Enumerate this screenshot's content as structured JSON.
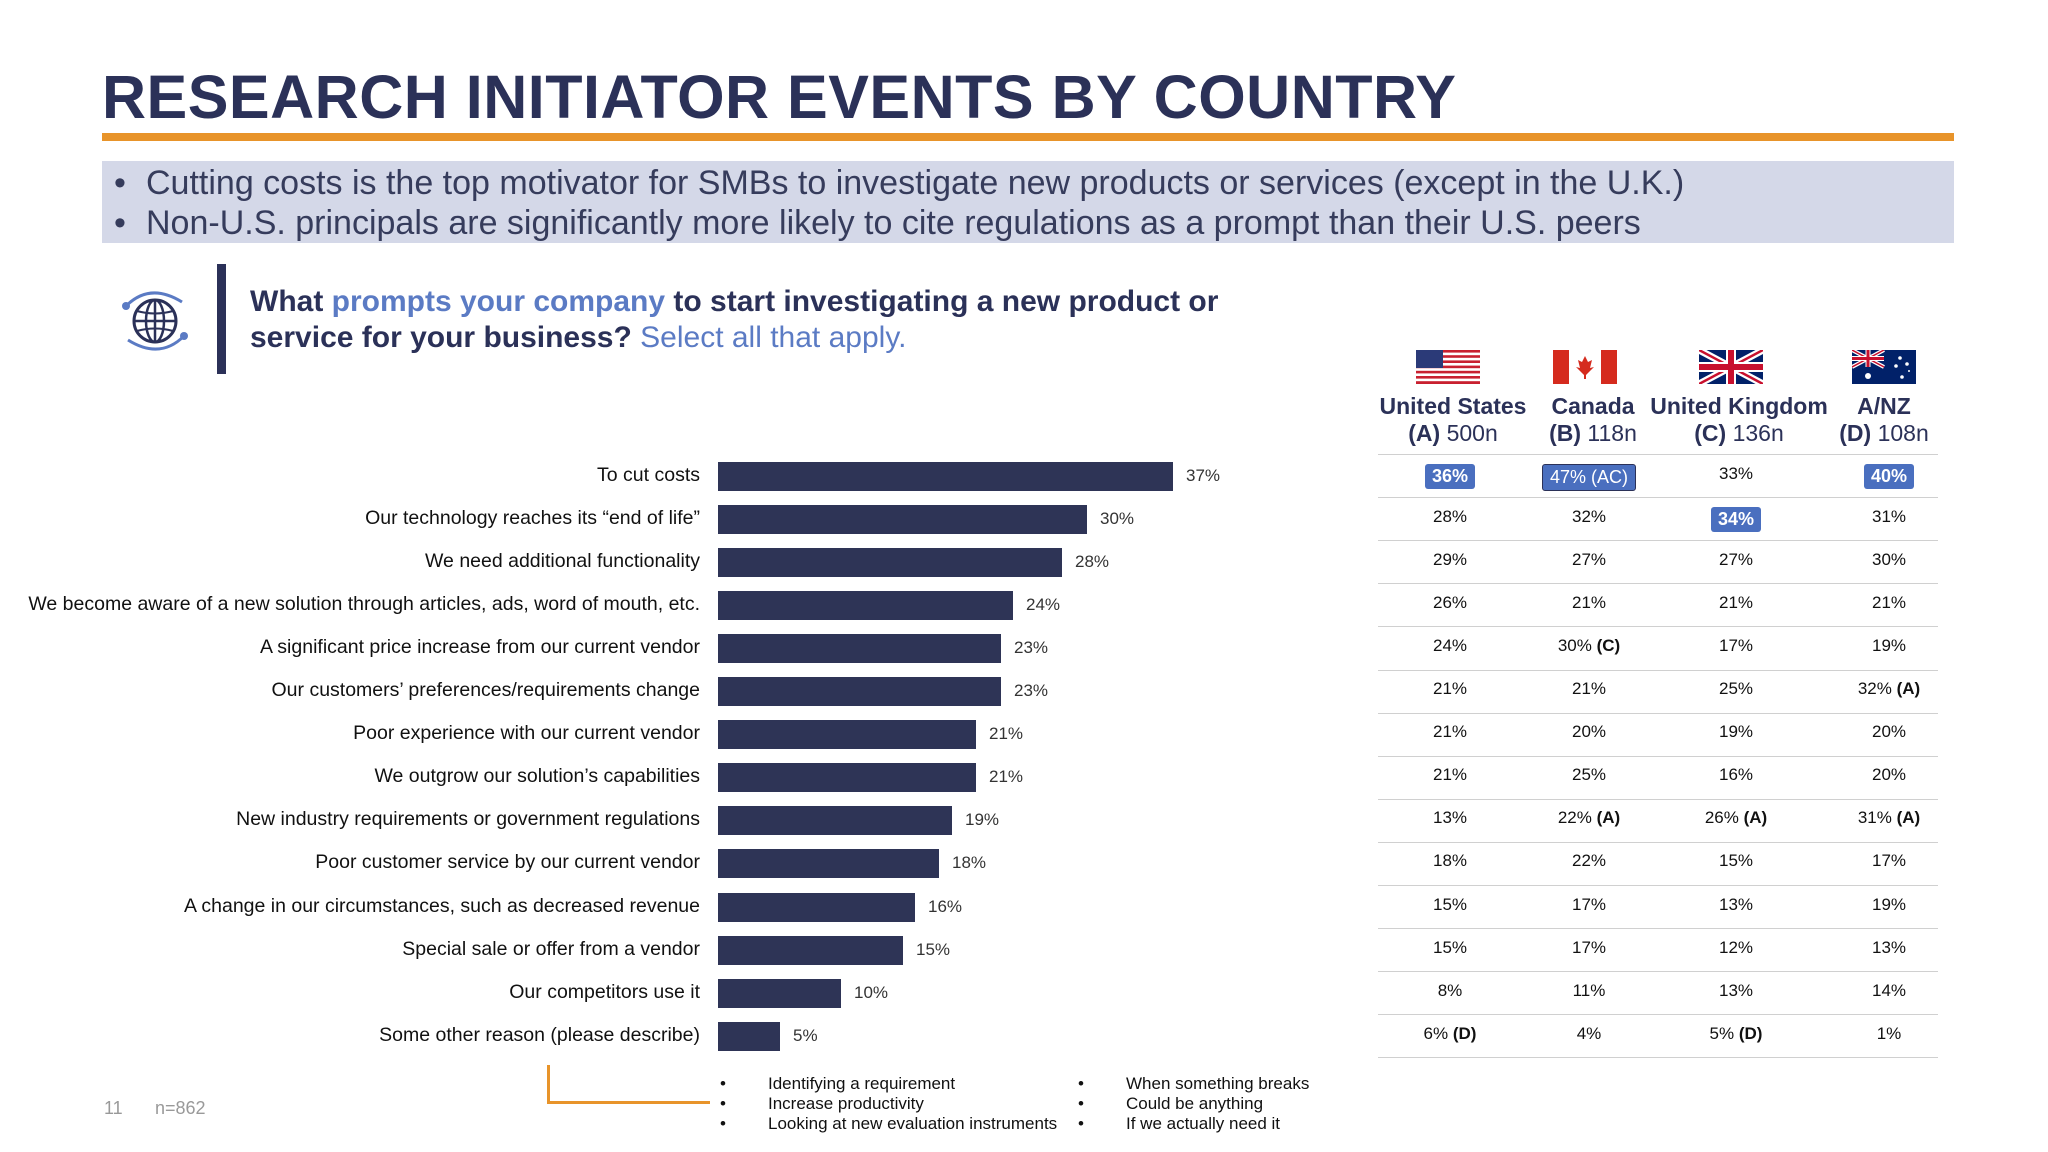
{
  "title": "RESEARCH INITIATOR EVENTS BY COUNTRY",
  "bullets": [
    "Cutting costs is the top motivator for SMBs to investigate new products or services (except in the U.K.)",
    "Non-U.S. principals are significantly more likely to cite regulations as a prompt than their U.S. peers"
  ],
  "bullet_symbol": "•",
  "question": {
    "part1": "What ",
    "highlight": "prompts your company",
    "part2": " to start investigating a new product or service for your business? ",
    "select": "Select all that apply."
  },
  "icon": "globe-network-icon",
  "colors": {
    "title": "#2b3158",
    "accent": "#e8942a",
    "bar": "#2e3456",
    "highlight": "#4a6fbf",
    "bullet_bg": "#d4d8e8"
  },
  "columns": [
    {
      "name": "United States",
      "letter": "(A)",
      "n": " 500n",
      "flag": "us-flag-icon"
    },
    {
      "name": "Canada",
      "letter": "(B)",
      "n": " 118n",
      "flag": "canada-flag-icon"
    },
    {
      "name": "United Kingdom",
      "letter": "(C)",
      "n": " 136n",
      "flag": "uk-flag-icon"
    },
    {
      "name": "A/NZ",
      "letter": "(D)",
      "n": " 108n",
      "flag": "australia-flag-icon"
    }
  ],
  "chart_data": {
    "type": "bar",
    "orientation": "horizontal",
    "value_suffix": "%",
    "xlim": [
      0,
      100
    ],
    "categories": [
      "To cut costs",
      "Our technology reaches its “end of life”",
      "We need additional functionality",
      "We become aware of a new solution through articles, ads, word of mouth, etc.",
      "A significant price increase from our current vendor",
      "Our customers’ preferences/requirements change",
      "Poor experience with our current vendor",
      "We outgrow our solution’s capabilities",
      "New industry requirements or government regulations",
      "Poor customer service by our current vendor",
      "A change in our circumstances, such as decreased revenue",
      "Special sale or offer from a vendor",
      "Our competitors use it",
      "Some other reason (please describe)"
    ],
    "values": [
      37,
      30,
      28,
      24,
      23,
      23,
      21,
      21,
      19,
      18,
      16,
      15,
      10,
      5
    ],
    "labels": [
      "37%",
      "30%",
      "28%",
      "24%",
      "23%",
      "23%",
      "21%",
      "21%",
      "19%",
      "18%",
      "16%",
      "15%",
      "10%",
      "5%"
    ]
  },
  "table": [
    [
      {
        "v": "36%",
        "hl": true
      },
      {
        "v": "47%",
        "sig": " (AC)",
        "hl": true
      },
      {
        "v": "33%"
      },
      {
        "v": "40%",
        "hl": true
      }
    ],
    [
      {
        "v": "28%"
      },
      {
        "v": "32%"
      },
      {
        "v": "34%",
        "hl": true
      },
      {
        "v": "31%"
      }
    ],
    [
      {
        "v": "29%"
      },
      {
        "v": "27%"
      },
      {
        "v": "27%"
      },
      {
        "v": "30%"
      }
    ],
    [
      {
        "v": "26%"
      },
      {
        "v": "21%"
      },
      {
        "v": "21%"
      },
      {
        "v": "21%"
      }
    ],
    [
      {
        "v": "24%"
      },
      {
        "v": "30%",
        "sig": " (C)"
      },
      {
        "v": "17%"
      },
      {
        "v": "19%"
      }
    ],
    [
      {
        "v": "21%"
      },
      {
        "v": "21%"
      },
      {
        "v": "25%"
      },
      {
        "v": "32%",
        "sig": " (A)"
      }
    ],
    [
      {
        "v": "21%"
      },
      {
        "v": "20%"
      },
      {
        "v": "19%"
      },
      {
        "v": "20%"
      }
    ],
    [
      {
        "v": "21%"
      },
      {
        "v": "25%"
      },
      {
        "v": "16%"
      },
      {
        "v": "20%"
      }
    ],
    [
      {
        "v": "13%"
      },
      {
        "v": "22%",
        "sig": " (A)"
      },
      {
        "v": "26%",
        "sig": " (A)"
      },
      {
        "v": "31%",
        "sig": " (A)"
      }
    ],
    [
      {
        "v": "18%"
      },
      {
        "v": "22%"
      },
      {
        "v": "15%"
      },
      {
        "v": "17%"
      }
    ],
    [
      {
        "v": "15%"
      },
      {
        "v": "17%"
      },
      {
        "v": "13%"
      },
      {
        "v": "19%"
      }
    ],
    [
      {
        "v": "15%"
      },
      {
        "v": "17%"
      },
      {
        "v": "12%"
      },
      {
        "v": "13%"
      }
    ],
    [
      {
        "v": "8%"
      },
      {
        "v": "11%"
      },
      {
        "v": "13%"
      },
      {
        "v": "14%"
      }
    ],
    [
      {
        "v": "6%",
        "sig": " (D)"
      },
      {
        "v": "4%"
      },
      {
        "v": "5%",
        "sig": " (D)"
      },
      {
        "v": "1%"
      }
    ]
  ],
  "other_reasons": {
    "col1": [
      "Identifying a requirement",
      "Increase productivity",
      "Looking at new evaluation instruments"
    ],
    "col2": [
      "When something breaks",
      "Could be anything",
      "If we actually need it"
    ]
  },
  "footer": {
    "page": "11",
    "n": "n=862"
  }
}
